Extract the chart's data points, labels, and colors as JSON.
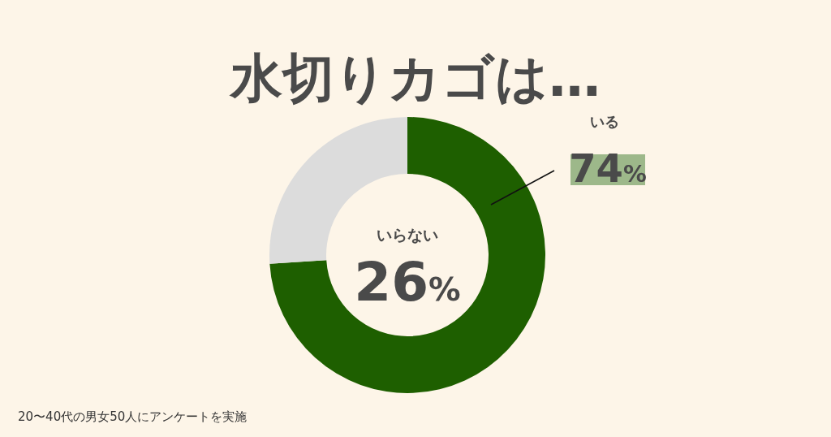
{
  "chart_data": {
    "type": "donut",
    "title": "水切りカゴは…",
    "categories": [
      "いる",
      "いらない"
    ],
    "values": [
      74,
      26
    ],
    "colors": [
      "#1e5f00",
      "#dcdcdc"
    ],
    "value_labels": [
      "74%",
      "26%"
    ],
    "annotations": [
      "20〜40代の男女50人にアンケートを実施"
    ]
  }
}
